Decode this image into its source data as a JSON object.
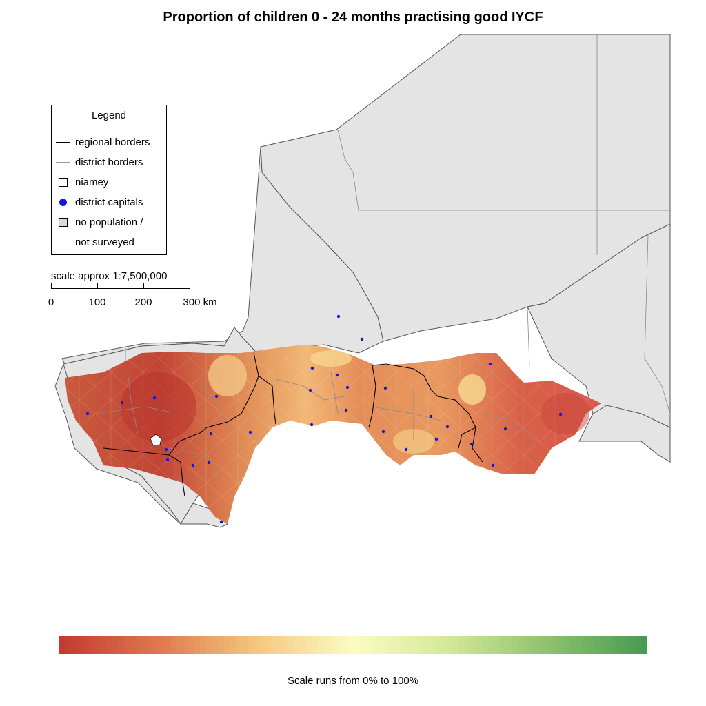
{
  "title": "Proportion of children 0 - 24 months practising good IYCF",
  "legend": {
    "title": "Legend",
    "items": [
      {
        "label": "regional borders",
        "symbol": "black-line-icon"
      },
      {
        "label": "district borders",
        "symbol": "grey-line-icon"
      },
      {
        "label": "niamey",
        "symbol": "hollow-square-icon"
      },
      {
        "label": "district capitals",
        "symbol": "blue-dot-icon"
      },
      {
        "label": "no population /",
        "symbol": "grey-square-icon"
      },
      {
        "label": "not surveyed",
        "symbol": ""
      }
    ]
  },
  "scale": {
    "caption": "scale approx 1:7,500,000",
    "ticks": [
      "0",
      "100",
      "200",
      "300 km"
    ]
  },
  "colorbar": {
    "note": "Scale runs from 0% to 100%",
    "min": 0,
    "max": 100,
    "stops": [
      "#c23b32",
      "#e0784e",
      "#f5c77e",
      "#fbfcc4",
      "#d3e896",
      "#8fc26e",
      "#4a9a56"
    ]
  },
  "colors": {
    "background_country": "#e4e4e4",
    "border_country": "#555555",
    "regional_border": "#000000",
    "district_border": "#8a8a8a",
    "district_capital": "#1515e0"
  }
}
